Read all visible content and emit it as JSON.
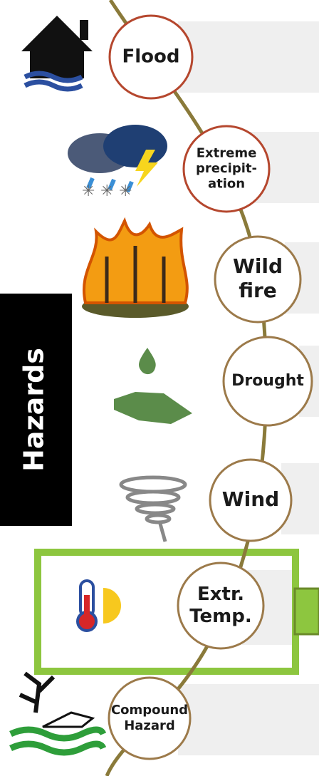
{
  "side_label": "Hazards",
  "hazards": [
    {
      "lines": [
        "Flood"
      ]
    },
    {
      "lines": [
        "Extreme",
        "precipit-",
        "ation"
      ]
    },
    {
      "lines": [
        "Wild",
        "fire"
      ]
    },
    {
      "lines": [
        "Drought"
      ]
    },
    {
      "lines": [
        "Wind"
      ]
    },
    {
      "lines": [
        "Extr.",
        "Temp."
      ]
    },
    {
      "lines": [
        "Compound",
        "Hazard"
      ]
    }
  ]
}
